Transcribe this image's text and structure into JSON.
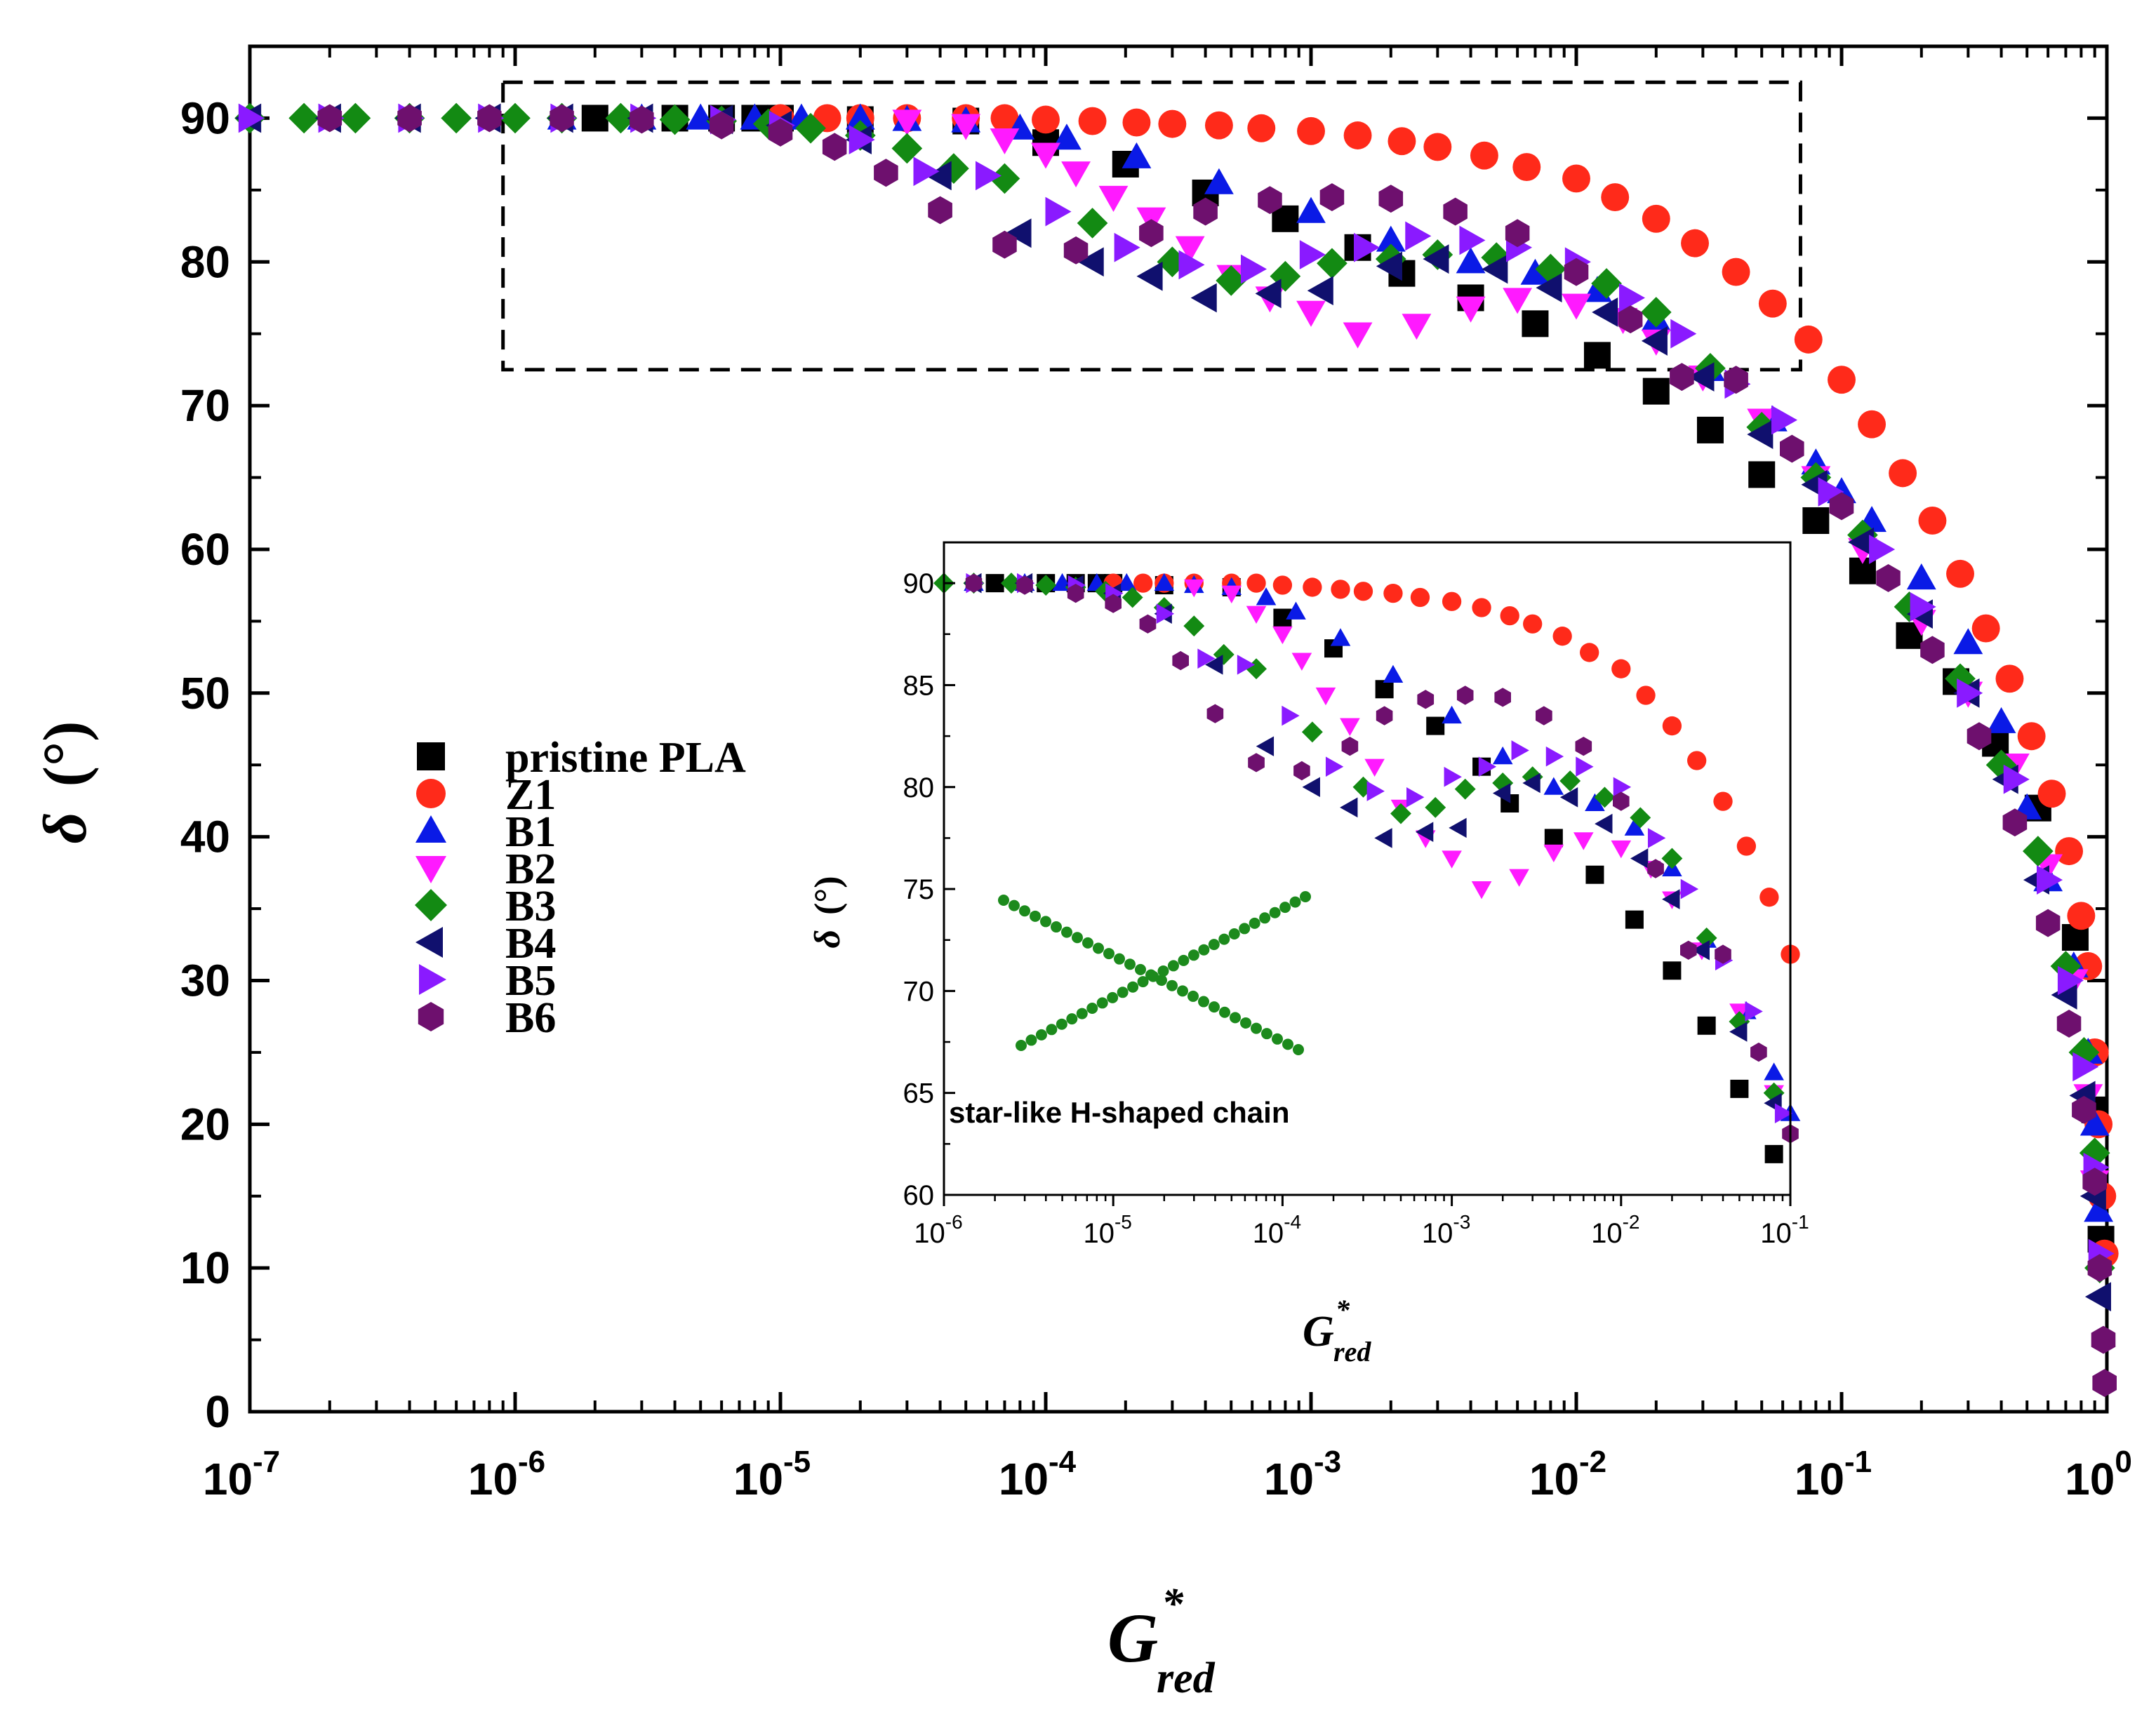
{
  "chart_data": [
    {
      "id": "main",
      "type": "scatter",
      "x_scale": "log",
      "xlim": [
        1e-07,
        1.0
      ],
      "ylim": [
        0,
        95
      ],
      "xlabel": {
        "main": "G",
        "sup": "*",
        "sub": "red"
      },
      "ylabel": {
        "symbol": "δ",
        "unit": "(°)"
      },
      "yticks": [
        0,
        10,
        20,
        30,
        40,
        50,
        60,
        70,
        80,
        90
      ],
      "xticks": [
        {
          "base": "10",
          "exp": "-7",
          "value": 1e-07
        },
        {
          "base": "10",
          "exp": "-6",
          "value": 1e-06
        },
        {
          "base": "10",
          "exp": "-5",
          "value": 1e-05
        },
        {
          "base": "10",
          "exp": "-4",
          "value": 0.0001
        },
        {
          "base": "10",
          "exp": "-3",
          "value": 0.001
        },
        {
          "base": "10",
          "exp": "-2",
          "value": 0.01
        },
        {
          "base": "10",
          "exp": "-1",
          "value": 0.1
        },
        {
          "base": "10",
          "exp": "0",
          "value": 1
        }
      ],
      "zoom_box": {
        "x": [
          9e-07,
          0.07
        ],
        "y": [
          72.5,
          92.5
        ]
      },
      "legend": {
        "placement": "center-left",
        "entries": [
          "pristine PLA",
          "Z1",
          "B1",
          "B2",
          "B3",
          "B4",
          "B5",
          "B6"
        ]
      }
    },
    {
      "id": "inset",
      "type": "scatter",
      "x_scale": "log",
      "xlim": [
        1e-06,
        0.1
      ],
      "ylim": [
        60,
        92
      ],
      "xlabel": {
        "main": "G",
        "sup": "*",
        "sub": "red"
      },
      "ylabel": {
        "symbol": "δ",
        "unit": "(°)"
      },
      "yticks": [
        60,
        65,
        70,
        75,
        80,
        85,
        90
      ],
      "xticks": [
        {
          "base": "10",
          "exp": "-6",
          "value": 1e-06
        },
        {
          "base": "10",
          "exp": "-5",
          "value": 1e-05
        },
        {
          "base": "10",
          "exp": "-4",
          "value": 0.0001
        },
        {
          "base": "10",
          "exp": "-3",
          "value": 0.001
        },
        {
          "base": "10",
          "exp": "-2",
          "value": 0.01
        },
        {
          "base": "10",
          "exp": "-1",
          "value": 0.1
        }
      ],
      "annotation": "star-like H-shaped chain",
      "annotation_glyph": "green X of small dots"
    }
  ],
  "series": [
    {
      "name": "pristine PLA",
      "marker": "square",
      "color": "#000000",
      "points": [
        [
          2e-06,
          90
        ],
        [
          4e-06,
          90
        ],
        [
          6e-06,
          90
        ],
        [
          8e-06,
          90
        ],
        [
          1e-05,
          90
        ],
        [
          2e-05,
          89.9
        ],
        [
          5e-05,
          89.8
        ],
        [
          0.0001,
          88.3
        ],
        [
          0.0002,
          86.8
        ],
        [
          0.0004,
          84.8
        ],
        [
          0.0008,
          83
        ],
        [
          0.0015,
          81
        ],
        [
          0.0022,
          79.2
        ],
        [
          0.004,
          77.5
        ],
        [
          0.007,
          75.7
        ],
        [
          0.012,
          73.5
        ],
        [
          0.02,
          71
        ],
        [
          0.032,
          68.3
        ],
        [
          0.05,
          65.2
        ],
        [
          0.08,
          62
        ],
        [
          0.12,
          58.5
        ],
        [
          0.18,
          54
        ],
        [
          0.27,
          50.8
        ],
        [
          0.38,
          46.5
        ],
        [
          0.55,
          42
        ],
        [
          0.76,
          33
        ],
        [
          0.9,
          21
        ],
        [
          0.95,
          12
        ]
      ]
    },
    {
      "name": "Z1",
      "marker": "circle",
      "color": "#ff2a1a",
      "points": [
        [
          1e-05,
          90
        ],
        [
          1.5e-05,
          90
        ],
        [
          2e-05,
          90
        ],
        [
          3e-05,
          90
        ],
        [
          5e-05,
          90
        ],
        [
          7e-05,
          90
        ],
        [
          0.0001,
          89.9
        ],
        [
          0.00015,
          89.8
        ],
        [
          0.00022,
          89.7
        ],
        [
          0.0003,
          89.6
        ],
        [
          0.00045,
          89.5
        ],
        [
          0.00065,
          89.3
        ],
        [
          0.001,
          89.1
        ],
        [
          0.0015,
          88.8
        ],
        [
          0.0022,
          88.4
        ],
        [
          0.003,
          88
        ],
        [
          0.0045,
          87.4
        ],
        [
          0.0065,
          86.6
        ],
        [
          0.01,
          85.8
        ],
        [
          0.014,
          84.5
        ],
        [
          0.02,
          83
        ],
        [
          0.028,
          81.3
        ],
        [
          0.04,
          79.3
        ],
        [
          0.055,
          77.1
        ],
        [
          0.075,
          74.6
        ],
        [
          0.1,
          71.8
        ],
        [
          0.13,
          68.7
        ],
        [
          0.17,
          65.3
        ],
        [
          0.22,
          62
        ],
        [
          0.28,
          58.3
        ],
        [
          0.35,
          54.5
        ],
        [
          0.43,
          51
        ],
        [
          0.52,
          47
        ],
        [
          0.62,
          43
        ],
        [
          0.72,
          39
        ],
        [
          0.8,
          34.5
        ],
        [
          0.85,
          31
        ],
        [
          0.9,
          25
        ],
        [
          0.93,
          20
        ],
        [
          0.96,
          15
        ],
        [
          0.98,
          11
        ]
      ]
    },
    {
      "name": "B1",
      "marker": "triangle-up",
      "color": "#0a1ae6",
      "points": [
        [
          1.5e-06,
          90
        ],
        [
          3e-06,
          90
        ],
        [
          5e-06,
          90
        ],
        [
          8e-06,
          90
        ],
        [
          1.2e-05,
          90
        ],
        [
          2e-05,
          90
        ],
        [
          3e-05,
          89.9
        ],
        [
          5e-05,
          89.8
        ],
        [
          8e-05,
          89.3
        ],
        [
          0.00012,
          88.6
        ],
        [
          0.00022,
          87.3
        ],
        [
          0.00045,
          85.5
        ],
        [
          0.001,
          83.5
        ],
        [
          0.002,
          81.5
        ],
        [
          0.004,
          80
        ],
        [
          0.007,
          79.2
        ],
        [
          0.012,
          78
        ],
        [
          0.02,
          76
        ],
        [
          0.032,
          72.5
        ],
        [
          0.055,
          69
        ],
        [
          0.08,
          66
        ],
        [
          0.1,
          64
        ],
        [
          0.13,
          62
        ],
        [
          0.2,
          58
        ],
        [
          0.3,
          53.5
        ],
        [
          0.4,
          48
        ],
        [
          0.5,
          42
        ],
        [
          0.6,
          37
        ],
        [
          0.75,
          31
        ],
        [
          0.85,
          25
        ],
        [
          0.9,
          20
        ],
        [
          0.93,
          14
        ]
      ]
    },
    {
      "name": "B2",
      "marker": "triangle-down",
      "color": "#ff1aff",
      "points": [
        [
          3e-05,
          89.8
        ],
        [
          5e-05,
          89.5
        ],
        [
          7e-05,
          88.5
        ],
        [
          0.0001,
          87.5
        ],
        [
          0.00013,
          86.2
        ],
        [
          0.00018,
          84.5
        ],
        [
          0.00025,
          83
        ],
        [
          0.00035,
          81
        ],
        [
          0.0005,
          79
        ],
        [
          0.0007,
          77.5
        ],
        [
          0.001,
          76.5
        ],
        [
          0.0015,
          75
        ],
        [
          0.0025,
          75.6
        ],
        [
          0.004,
          76.8
        ],
        [
          0.006,
          77.4
        ],
        [
          0.01,
          77
        ],
        [
          0.015,
          76
        ],
        [
          0.02,
          74.5
        ],
        [
          0.03,
          72
        ],
        [
          0.05,
          69
        ],
        [
          0.08,
          65
        ],
        [
          0.12,
          60
        ],
        [
          0.2,
          55
        ],
        [
          0.3,
          50
        ],
        [
          0.45,
          45
        ],
        [
          0.6,
          38
        ],
        [
          0.75,
          30
        ],
        [
          0.85,
          22
        ],
        [
          0.9,
          16
        ]
      ]
    },
    {
      "name": "B3",
      "marker": "diamond",
      "color": "#138a13",
      "points": [
        [
          1e-07,
          90
        ],
        [
          1.6e-07,
          90
        ],
        [
          2.5e-07,
          90
        ],
        [
          4e-07,
          90
        ],
        [
          6e-07,
          90
        ],
        [
          1e-06,
          90
        ],
        [
          1.5e-06,
          90
        ],
        [
          2.5e-06,
          90
        ],
        [
          4e-06,
          89.9
        ],
        [
          6e-06,
          89.8
        ],
        [
          9e-06,
          89.6
        ],
        [
          1.3e-05,
          89.3
        ],
        [
          2e-05,
          88.8
        ],
        [
          3e-05,
          87.9
        ],
        [
          4.5e-05,
          86.5
        ],
        [
          7e-05,
          85.8
        ],
        [
          0.00015,
          82.7
        ],
        [
          0.0003,
          80
        ],
        [
          0.0005,
          78.7
        ],
        [
          0.0008,
          79
        ],
        [
          0.0012,
          79.9
        ],
        [
          0.002,
          80.2
        ],
        [
          0.003,
          80.5
        ],
        [
          0.005,
          80.3
        ],
        [
          0.008,
          79.5
        ],
        [
          0.013,
          78.5
        ],
        [
          0.02,
          76.5
        ],
        [
          0.032,
          72.6
        ],
        [
          0.05,
          68.5
        ],
        [
          0.08,
          65
        ],
        [
          0.12,
          61
        ],
        [
          0.18,
          56
        ],
        [
          0.28,
          51
        ],
        [
          0.4,
          45
        ],
        [
          0.55,
          39
        ],
        [
          0.7,
          31
        ],
        [
          0.82,
          25
        ],
        [
          0.9,
          18
        ],
        [
          0.94,
          10
        ]
      ]
    },
    {
      "name": "B4",
      "marker": "triangle-left",
      "color": "#10106e",
      "points": [
        [
          1e-07,
          90
        ],
        [
          2e-07,
          90
        ],
        [
          4e-07,
          90
        ],
        [
          8e-07,
          90
        ],
        [
          1.5e-06,
          90
        ],
        [
          3e-06,
          90
        ],
        [
          6e-06,
          89.9
        ],
        [
          1e-05,
          89.5
        ],
        [
          2e-05,
          88.5
        ],
        [
          4e-05,
          86
        ],
        [
          8e-05,
          82
        ],
        [
          0.00015,
          80
        ],
        [
          0.00025,
          79
        ],
        [
          0.0004,
          77.5
        ],
        [
          0.0007,
          77.8
        ],
        [
          0.0011,
          78
        ],
        [
          0.002,
          79.7
        ],
        [
          0.003,
          80.2
        ],
        [
          0.005,
          79.5
        ],
        [
          0.008,
          78.2
        ],
        [
          0.013,
          76.5
        ],
        [
          0.02,
          74.5
        ],
        [
          0.03,
          72
        ],
        [
          0.05,
          68
        ],
        [
          0.08,
          64.5
        ],
        [
          0.12,
          60.5
        ],
        [
          0.2,
          55.5
        ],
        [
          0.3,
          50
        ],
        [
          0.42,
          44
        ],
        [
          0.55,
          37
        ],
        [
          0.7,
          29
        ],
        [
          0.82,
          22
        ],
        [
          0.9,
          15
        ],
        [
          0.94,
          8
        ]
      ]
    },
    {
      "name": "B5",
      "marker": "triangle-right",
      "color": "#8a1aff",
      "points": [
        [
          1e-07,
          90
        ],
        [
          2e-07,
          90
        ],
        [
          4e-07,
          90
        ],
        [
          8e-07,
          90
        ],
        [
          1.5e-06,
          90
        ],
        [
          3e-06,
          90
        ],
        [
          6e-06,
          89.9
        ],
        [
          1e-05,
          89.5
        ],
        [
          2e-05,
          88.5
        ],
        [
          3.5e-05,
          86.3
        ],
        [
          6e-05,
          86
        ],
        [
          0.00011,
          83.5
        ],
        [
          0.0002,
          81
        ],
        [
          0.00035,
          79.8
        ],
        [
          0.0006,
          79.5
        ],
        [
          0.001,
          80.5
        ],
        [
          0.0016,
          81
        ],
        [
          0.0025,
          81.8
        ],
        [
          0.004,
          81.5
        ],
        [
          0.006,
          81
        ],
        [
          0.01,
          80
        ],
        [
          0.016,
          77.5
        ],
        [
          0.025,
          75
        ],
        [
          0.04,
          71.5
        ],
        [
          0.06,
          69
        ],
        [
          0.09,
          64
        ],
        [
          0.14,
          60
        ],
        [
          0.2,
          56
        ],
        [
          0.3,
          50
        ],
        [
          0.45,
          44
        ],
        [
          0.6,
          37
        ],
        [
          0.72,
          30
        ],
        [
          0.82,
          24
        ],
        [
          0.9,
          17
        ],
        [
          0.94,
          11
        ]
      ]
    },
    {
      "name": "B6",
      "marker": "hexagon",
      "color": "#6e106e",
      "points": [
        [
          2e-07,
          90
        ],
        [
          4e-07,
          90
        ],
        [
          8e-07,
          90
        ],
        [
          1.5e-06,
          90
        ],
        [
          3e-06,
          89.9
        ],
        [
          6e-06,
          89.5
        ],
        [
          1e-05,
          89
        ],
        [
          1.6e-05,
          88
        ],
        [
          2.5e-05,
          86.2
        ],
        [
          4e-05,
          83.6
        ],
        [
          7e-05,
          81.2
        ],
        [
          0.00013,
          80.8
        ],
        [
          0.00025,
          82
        ],
        [
          0.0004,
          83.5
        ],
        [
          0.0007,
          84.3
        ],
        [
          0.0012,
          84.5
        ],
        [
          0.002,
          84.4
        ],
        [
          0.0035,
          83.5
        ],
        [
          0.006,
          82
        ],
        [
          0.01,
          79.3
        ],
        [
          0.016,
          76
        ],
        [
          0.025,
          72
        ],
        [
          0.04,
          71.8
        ],
        [
          0.065,
          67
        ],
        [
          0.1,
          63
        ],
        [
          0.15,
          58
        ],
        [
          0.22,
          53
        ],
        [
          0.33,
          47
        ],
        [
          0.45,
          41
        ],
        [
          0.6,
          34
        ],
        [
          0.72,
          27
        ],
        [
          0.82,
          21
        ],
        [
          0.9,
          16
        ],
        [
          0.94,
          10
        ],
        [
          0.97,
          5
        ],
        [
          0.98,
          2
        ]
      ]
    }
  ]
}
